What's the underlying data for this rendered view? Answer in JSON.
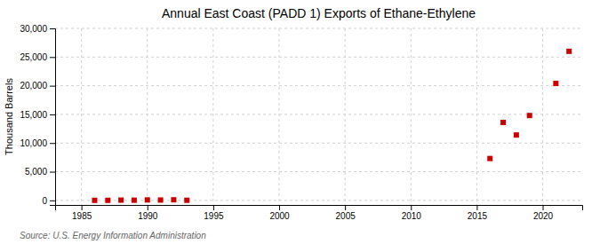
{
  "chart_data": {
    "type": "scatter",
    "title": "Annual East Coast (PADD 1) Exports of Ethane-Ethylene",
    "ylabel": "Thousand Barrels",
    "source": "Source: U.S. Energy Information Administration",
    "x": [
      1986,
      1987,
      1988,
      1989,
      1990,
      1991,
      1992,
      1993,
      2016,
      2017,
      2018,
      2019,
      2021,
      2022
    ],
    "values": [
      5,
      10,
      50,
      30,
      80,
      60,
      100,
      20,
      7300,
      13600,
      11400,
      14800,
      20400,
      26000
    ],
    "color": "#cc0000",
    "marker": "square",
    "xlim": [
      1983,
      2023
    ],
    "ylim": [
      -800,
      30000
    ],
    "xticks": [
      1985,
      1990,
      1995,
      2000,
      2005,
      2010,
      2015,
      2020
    ],
    "yticks": [
      0,
      {
        "value": 5000,
        "label": "5,000"
      },
      {
        "value": 10000,
        "label": "10,000"
      },
      {
        "value": 15000,
        "label": "15,000"
      },
      {
        "value": 20000,
        "label": "20,000"
      },
      {
        "value": 25000,
        "label": "25,000"
      },
      {
        "value": 30000,
        "label": "30,000"
      }
    ],
    "grid": true
  }
}
